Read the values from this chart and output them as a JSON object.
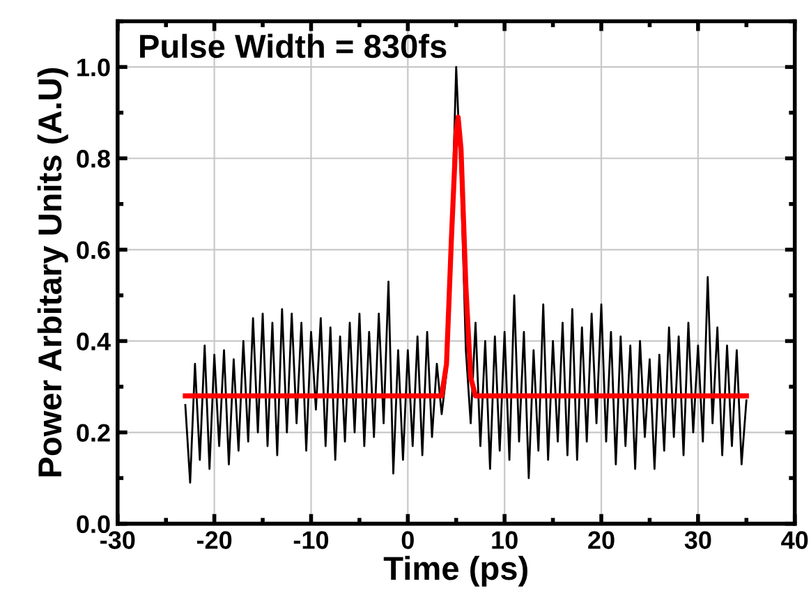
{
  "chart_data": {
    "type": "line",
    "xlabel": "Time (ps)",
    "ylabel": "Power Arbitary Units (A.U)",
    "annotations": [
      "Pulse Width = 830fs"
    ],
    "xlim": [
      -30,
      40
    ],
    "xticks": [
      -30,
      -20,
      -10,
      0,
      10,
      20,
      30,
      40
    ],
    "ylim": [
      0,
      1.1
    ],
    "yticks": [
      {
        "value": 0,
        "label": "0.0"
      },
      0.2,
      0.4,
      0.6,
      0.8,
      {
        "value": 1,
        "label": "1.0"
      }
    ],
    "grid": true,
    "marker": "none",
    "line_style": "solid",
    "series": [
      {
        "color": "#000000",
        "x": [
          -23,
          -22.5,
          -22,
          -21.5,
          -21,
          -20.5,
          -20,
          -19.5,
          -19,
          -18.5,
          -18,
          -17.5,
          -17,
          -16.5,
          -16,
          -15.5,
          -15,
          -14.5,
          -14,
          -13.5,
          -13,
          -12.5,
          -12,
          -11.5,
          -11,
          -10.5,
          -10,
          -9.5,
          -9,
          -8.5,
          -8,
          -7.5,
          -7,
          -6.5,
          -6,
          -5.5,
          -5,
          -4.5,
          -4,
          -3.5,
          -3,
          -2.5,
          -2,
          -1.5,
          -1,
          -0.5,
          0,
          0.5,
          1,
          1.5,
          2,
          2.5,
          3,
          3.5,
          4,
          4.5,
          5,
          5.5,
          6,
          6.5,
          7,
          7.5,
          8,
          8.5,
          9,
          9.5,
          10,
          10.5,
          11,
          11.5,
          12,
          12.5,
          13,
          13.5,
          14,
          14.5,
          15,
          15.5,
          16,
          16.5,
          17,
          17.5,
          18,
          18.5,
          19,
          19.5,
          20,
          20.5,
          21,
          21.5,
          22,
          22.5,
          23,
          23.5,
          24,
          24.5,
          25,
          25.5,
          26,
          26.5,
          27,
          27.5,
          28,
          28.5,
          29,
          29.5,
          30,
          30.5,
          31,
          31.5,
          32,
          32.5,
          33,
          33.5,
          34,
          34.5,
          35
        ],
        "values": [
          0.26,
          0.09,
          0.35,
          0.14,
          0.39,
          0.12,
          0.37,
          0.17,
          0.38,
          0.13,
          0.36,
          0.16,
          0.4,
          0.18,
          0.45,
          0.2,
          0.46,
          0.17,
          0.44,
          0.15,
          0.47,
          0.2,
          0.46,
          0.22,
          0.44,
          0.16,
          0.42,
          0.25,
          0.45,
          0.17,
          0.43,
          0.14,
          0.41,
          0.18,
          0.44,
          0.2,
          0.46,
          0.17,
          0.42,
          0.19,
          0.46,
          0.22,
          0.53,
          0.11,
          0.38,
          0.14,
          0.38,
          0.17,
          0.41,
          0.15,
          0.42,
          0.19,
          0.35,
          0.24,
          0.33,
          0.62,
          1.0,
          0.75,
          0.38,
          0.22,
          0.44,
          0.17,
          0.4,
          0.12,
          0.41,
          0.16,
          0.42,
          0.14,
          0.5,
          0.18,
          0.42,
          0.1,
          0.38,
          0.16,
          0.48,
          0.14,
          0.4,
          0.18,
          0.44,
          0.15,
          0.47,
          0.14,
          0.43,
          0.18,
          0.46,
          0.22,
          0.48,
          0.18,
          0.42,
          0.13,
          0.41,
          0.17,
          0.39,
          0.12,
          0.4,
          0.19,
          0.36,
          0.12,
          0.37,
          0.16,
          0.43,
          0.19,
          0.41,
          0.15,
          0.44,
          0.2,
          0.39,
          0.18,
          0.54,
          0.22,
          0.43,
          0.15,
          0.39,
          0.17,
          0.38,
          0.13,
          0.27
        ]
      },
      {
        "color": "#ff0000",
        "x": [
          -23,
          3.5,
          4.0,
          4.5,
          5.0,
          5.2,
          5.5,
          6.0,
          6.5,
          7.0,
          35
        ],
        "values": [
          0.28,
          0.28,
          0.35,
          0.62,
          0.86,
          0.89,
          0.82,
          0.52,
          0.32,
          0.28,
          0.28
        ]
      }
    ]
  }
}
